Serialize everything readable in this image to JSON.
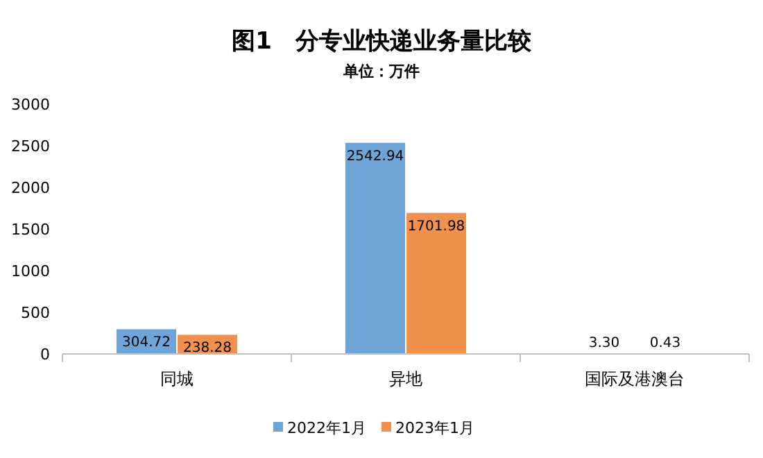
{
  "chart_data": {
    "type": "bar",
    "title": "图1　分专业快递业务量比较",
    "subtitle": "单位：万件",
    "categories": [
      "同城",
      "异地",
      "国际及港澳台"
    ],
    "series": [
      {
        "name": "2022年1月",
        "color": "#6fa4d9",
        "values": [
          304.72,
          2542.94,
          3.3
        ],
        "value_labels": [
          "304.72",
          "2542.94",
          "3.30"
        ]
      },
      {
        "name": "2023年1月",
        "color": "#f0914e",
        "values": [
          238.28,
          1701.98,
          0.43
        ],
        "value_labels": [
          "238.28",
          "1701.98",
          "0.43"
        ]
      }
    ],
    "ylim": [
      0,
      3000
    ],
    "yticks": [
      0,
      500,
      1000,
      1500,
      2000,
      2500,
      3000
    ],
    "legend": "bottom"
  }
}
